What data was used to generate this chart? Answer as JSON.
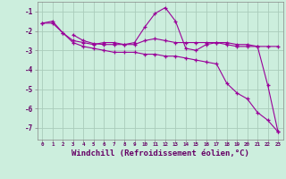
{
  "background_color": "#cceedd",
  "grid_color": "#aaccbb",
  "line_color": "#990099",
  "marker": "+",
  "xlabel": "Windchill (Refroidissement éolien,°C)",
  "xlabel_fontsize": 6.5,
  "ylabel_ticks": [
    -7,
    -6,
    -5,
    -4,
    -3,
    -2,
    -1
  ],
  "xlim": [
    -0.5,
    23.5
  ],
  "ylim": [
    -7.6,
    -0.5
  ],
  "xtick_labels": [
    "0",
    "1",
    "2",
    "3",
    "4",
    "5",
    "6",
    "7",
    "8",
    "9",
    "10",
    "11",
    "12",
    "13",
    "14",
    "15",
    "16",
    "17",
    "18",
    "19",
    "20",
    "21",
    "22",
    "23"
  ],
  "xtick_vals": [
    0,
    1,
    2,
    3,
    4,
    5,
    6,
    7,
    8,
    9,
    10,
    11,
    12,
    13,
    14,
    15,
    16,
    17,
    18,
    19,
    20,
    21,
    22,
    23
  ],
  "line1_x": [
    0,
    1,
    2,
    3,
    4,
    5,
    6,
    7,
    8,
    9,
    10,
    11,
    12,
    13,
    14,
    15,
    16,
    17,
    18,
    19,
    20,
    21,
    22,
    23
  ],
  "line1_y": [
    -1.6,
    -1.5,
    -2.1,
    -2.5,
    -2.6,
    -2.7,
    -2.6,
    -2.6,
    -2.7,
    -2.6,
    -1.8,
    -1.1,
    -0.8,
    -1.5,
    -2.9,
    -3.0,
    -2.7,
    -2.6,
    -2.7,
    -2.8,
    -2.8,
    -2.8,
    -2.8,
    -2.8
  ],
  "line2_x": [
    3,
    4,
    5,
    6,
    7,
    8,
    9,
    10,
    11,
    12,
    13,
    14,
    15,
    16,
    17,
    18,
    19,
    20,
    21,
    22,
    23
  ],
  "line2_y": [
    -2.2,
    -2.5,
    -2.65,
    -2.7,
    -2.7,
    -2.7,
    -2.7,
    -2.5,
    -2.4,
    -2.5,
    -2.6,
    -2.6,
    -2.6,
    -2.6,
    -2.6,
    -2.6,
    -2.7,
    -2.7,
    -2.8,
    -4.8,
    -7.2
  ],
  "line3_x": [
    0,
    1,
    2,
    3,
    4,
    5,
    6,
    7,
    8,
    9,
    10,
    11,
    12,
    13,
    14,
    15,
    16,
    17,
    18,
    19,
    20,
    21,
    22,
    23
  ],
  "line3_y": [
    -1.6,
    -1.6,
    -2.1,
    -2.6,
    -2.8,
    -2.9,
    -3.0,
    -3.1,
    -3.1,
    -3.1,
    -3.2,
    -3.2,
    -3.3,
    -3.3,
    -3.4,
    -3.5,
    -3.6,
    -3.7,
    -4.7,
    -5.2,
    -5.5,
    -6.2,
    -6.6,
    -7.2
  ]
}
